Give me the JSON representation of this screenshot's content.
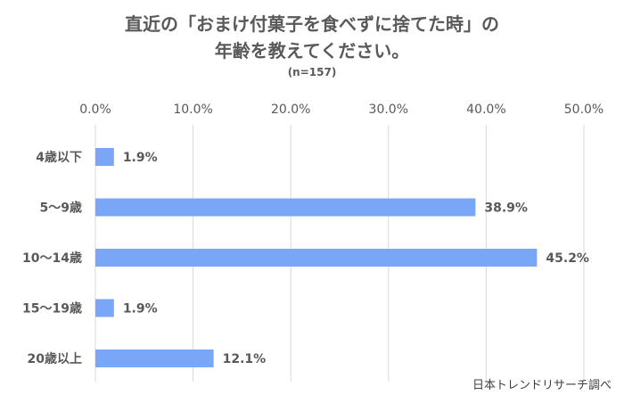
{
  "title_line1": "直近の「おまけ付菓子を食べずに捨てた時」の",
  "title_line2": "年齢を教えてください。",
  "subtitle": "(n=157)",
  "source": "日本トレンドリサーチ調べ",
  "colors": {
    "bar": "#7aa6f8",
    "grid": "#d9d9d9",
    "text": "#595959"
  },
  "chart_data": {
    "type": "bar",
    "orientation": "horizontal",
    "categories": [
      "4歳以下",
      "5〜9歳",
      "10〜14歳",
      "15〜19歳",
      "20歳以上"
    ],
    "values": [
      1.9,
      38.9,
      45.2,
      1.9,
      12.1
    ],
    "value_labels": [
      "1.9%",
      "38.9%",
      "45.2%",
      "1.9%",
      "12.1%"
    ],
    "xlim": [
      0,
      50
    ],
    "xticks": [
      0,
      10,
      20,
      30,
      40,
      50
    ],
    "xtick_labels": [
      "0.0%",
      "10.0%",
      "20.0%",
      "30.0%",
      "40.0%",
      "50.0%"
    ],
    "axis_position": "top",
    "grid": true,
    "legend": "none"
  }
}
